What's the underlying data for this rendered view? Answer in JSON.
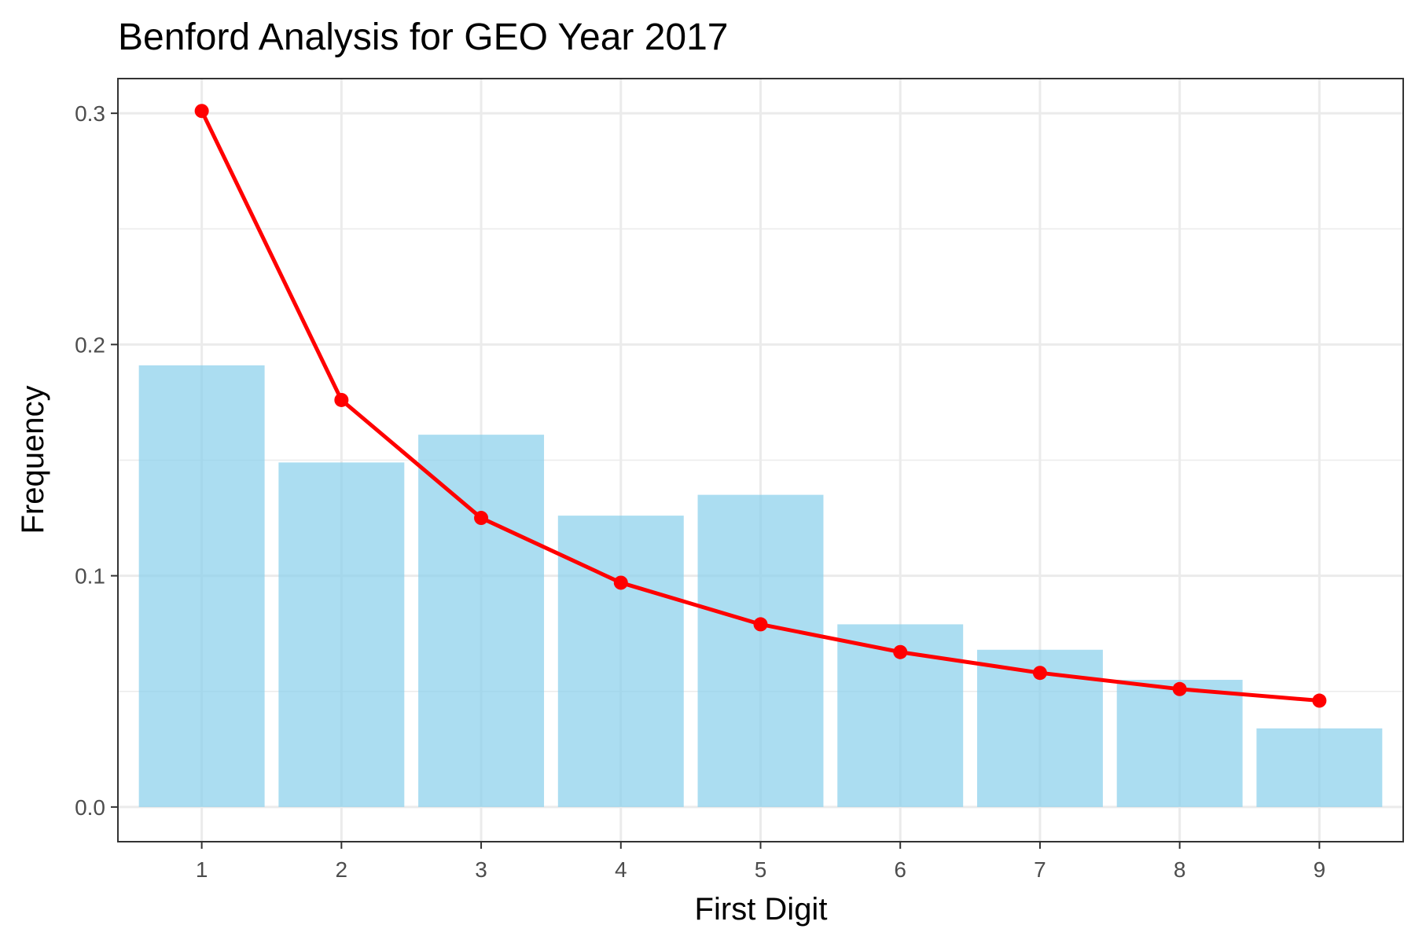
{
  "chart_data": {
    "type": "bar",
    "title": "Benford Analysis for GEO Year 2017",
    "xlabel": "First Digit",
    "ylabel": "Frequency",
    "categories": [
      "1",
      "2",
      "3",
      "4",
      "5",
      "6",
      "7",
      "8",
      "9"
    ],
    "series": [
      {
        "type": "bar",
        "values": [
          0.191,
          0.149,
          0.161,
          0.126,
          0.135,
          0.079,
          0.068,
          0.055,
          0.034
        ],
        "color": "#87CEEB"
      },
      {
        "type": "line",
        "values": [
          0.301,
          0.176,
          0.125,
          0.097,
          0.079,
          0.067,
          0.058,
          0.051,
          0.046
        ],
        "color": "#FF0000"
      }
    ],
    "ylim": [
      -0.015,
      0.315
    ],
    "yticks": [
      0.0,
      0.1,
      0.2,
      0.3
    ],
    "ytick_labels": [
      "0.0",
      "0.1",
      "0.2",
      "0.3"
    ],
    "grid": true,
    "legend": "none"
  }
}
